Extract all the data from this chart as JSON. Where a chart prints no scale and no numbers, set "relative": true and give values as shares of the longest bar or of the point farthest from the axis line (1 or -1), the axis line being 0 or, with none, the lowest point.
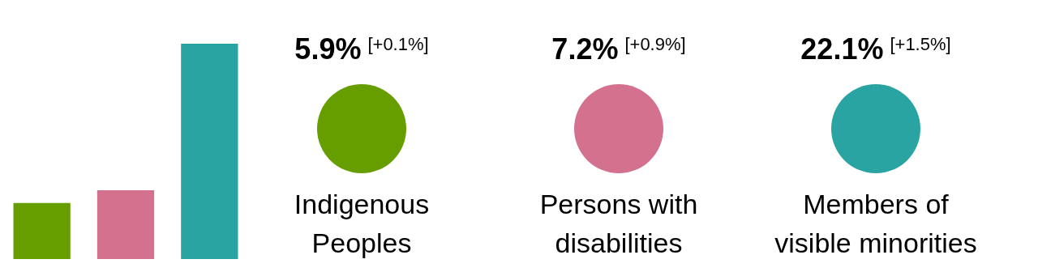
{
  "chart_data": [
    {
      "type": "bar",
      "relative": true,
      "categories": [
        null,
        null,
        null
      ],
      "values": [
        0.26,
        0.32,
        1
      ],
      "colors": [
        "#669e00",
        "#d4718e",
        "#2aa3a3"
      ]
    },
    {
      "type": "other",
      "categories": [
        "Indigenous Peoples",
        "Persons with disabilities",
        "Members of visible minorities"
      ],
      "value_labels": [
        "5.9%",
        "7.2%",
        "22.1%"
      ],
      "colors": [
        "#669e00",
        "#d4718e",
        "#2aa3a3"
      ],
      "annotations": [
        "[+0.1%]",
        "[+0.9%]",
        "[+1.5%]"
      ]
    }
  ]
}
